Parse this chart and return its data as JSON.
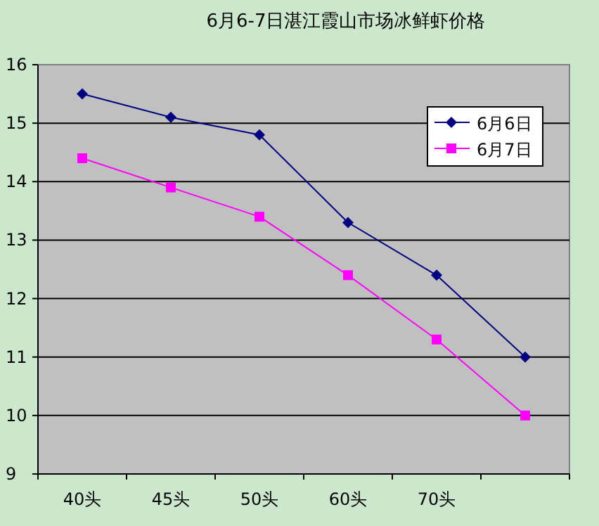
{
  "chart_data": {
    "type": "line",
    "title": "6月6-7日湛江霞山市场冰鲜虾价格",
    "categories": [
      "40头",
      "45头",
      "50头",
      "60头",
      "70头",
      null
    ],
    "series": [
      {
        "name": "6月6日",
        "color": "#000080",
        "marker": "diamond",
        "values": [
          15.5,
          15.1,
          14.8,
          13.3,
          12.4,
          11.0
        ]
      },
      {
        "name": "6月7日",
        "color": "#ff00ff",
        "marker": "square",
        "values": [
          14.4,
          13.9,
          13.4,
          12.4,
          11.3,
          10.0
        ]
      }
    ],
    "ylim": [
      9,
      16
    ],
    "yticks": [
      9,
      10,
      11,
      12,
      13,
      14,
      15,
      16
    ],
    "grid": "y",
    "legend": "top right"
  }
}
